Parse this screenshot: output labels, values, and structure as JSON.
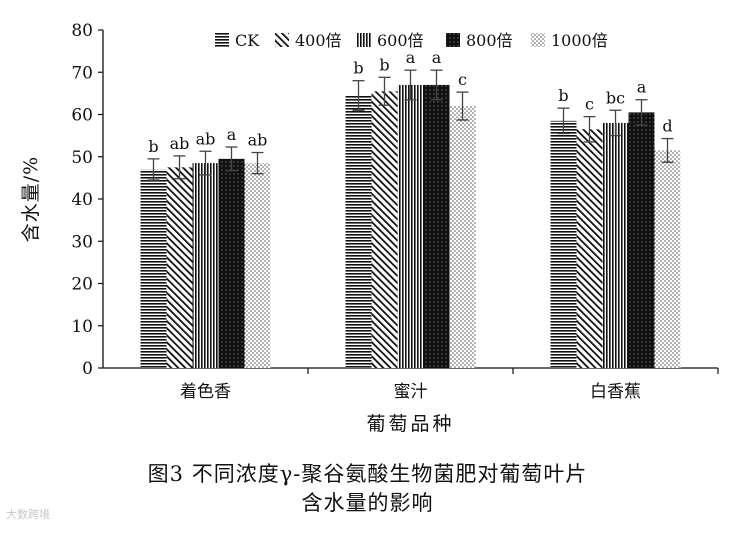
{
  "chart_data": {
    "type": "bar",
    "title": "",
    "ylabel": "含水量/%",
    "xlabel": "葡萄品种",
    "ylim": [
      0,
      80
    ],
    "yticks": [
      0,
      10,
      20,
      30,
      40,
      50,
      60,
      70,
      80
    ],
    "grid": false,
    "legend_position": "top",
    "categories": [
      "着色香",
      "蜜汁",
      "白香蕉"
    ],
    "series": [
      {
        "name": "CK",
        "pattern": "horizontal-lines",
        "values": [
          47.0,
          64.5,
          58.5
        ],
        "errors": [
          2.5,
          3.5,
          3.0
        ],
        "letters": [
          "b",
          "b",
          "b"
        ]
      },
      {
        "name": "400倍",
        "pattern": "diagonal-lines",
        "values": [
          47.5,
          65.5,
          56.5
        ],
        "errors": [
          2.7,
          3.3,
          3.0
        ],
        "letters": [
          "ab",
          "b",
          "c"
        ]
      },
      {
        "name": "600倍",
        "pattern": "vertical-lines",
        "values": [
          48.5,
          67.0,
          58.0
        ],
        "errors": [
          2.8,
          3.5,
          3.0
        ],
        "letters": [
          "ab",
          "a",
          "bc"
        ]
      },
      {
        "name": "800倍",
        "pattern": "black-dotted",
        "values": [
          49.5,
          67.0,
          60.5
        ],
        "errors": [
          2.8,
          3.5,
          3.0
        ],
        "letters": [
          "a",
          "a",
          "a"
        ]
      },
      {
        "name": "1000倍",
        "pattern": "sparse-dots",
        "values": [
          48.5,
          62.0,
          51.5
        ],
        "errors": [
          2.5,
          3.3,
          2.8
        ],
        "letters": [
          "ab",
          "c",
          "d"
        ]
      }
    ]
  },
  "caption": {
    "line1": "图3  不同浓度γ-聚谷氨酸生物菌肥对葡萄叶片",
    "line2": "含水量的影响"
  },
  "watermark": "大数跨境"
}
